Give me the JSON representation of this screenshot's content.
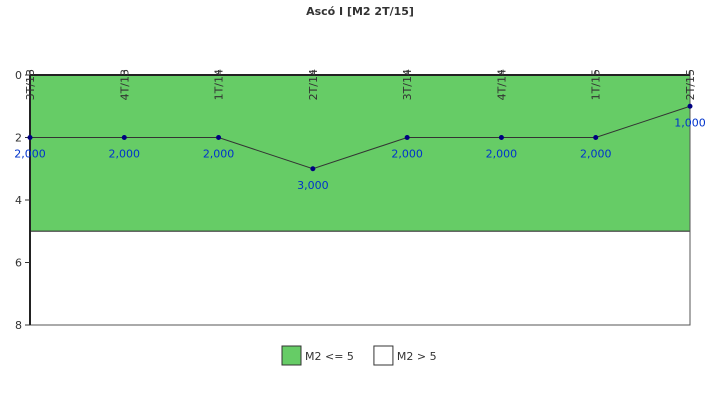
{
  "chart_data": {
    "type": "line",
    "title": "Ascó I [M2 2T/15]",
    "categories": [
      "3T/13",
      "4T/13",
      "1T/14",
      "2T/14",
      "3T/14",
      "4T/14",
      "1T/15",
      "2T/15"
    ],
    "series": [
      {
        "name": "M2",
        "color": "#333333",
        "marker_color": "#000080",
        "values": [
          2,
          2,
          2,
          3,
          2,
          2,
          2,
          1
        ],
        "value_labels": [
          "2,000",
          "2,000",
          "2,000",
          "3,000",
          "2,000",
          "2,000",
          "2,000",
          "1,000"
        ]
      }
    ],
    "bands": [
      {
        "name": "M2 <= 5",
        "color": "#66cc66",
        "from": 0,
        "to": 5
      },
      {
        "name": "M2 > 5",
        "color": "#ffffff",
        "from": 5,
        "to": 8
      }
    ],
    "ylim": [
      0,
      8
    ],
    "yticks": [
      0,
      2,
      4,
      6,
      8
    ],
    "y_reversed": true
  }
}
